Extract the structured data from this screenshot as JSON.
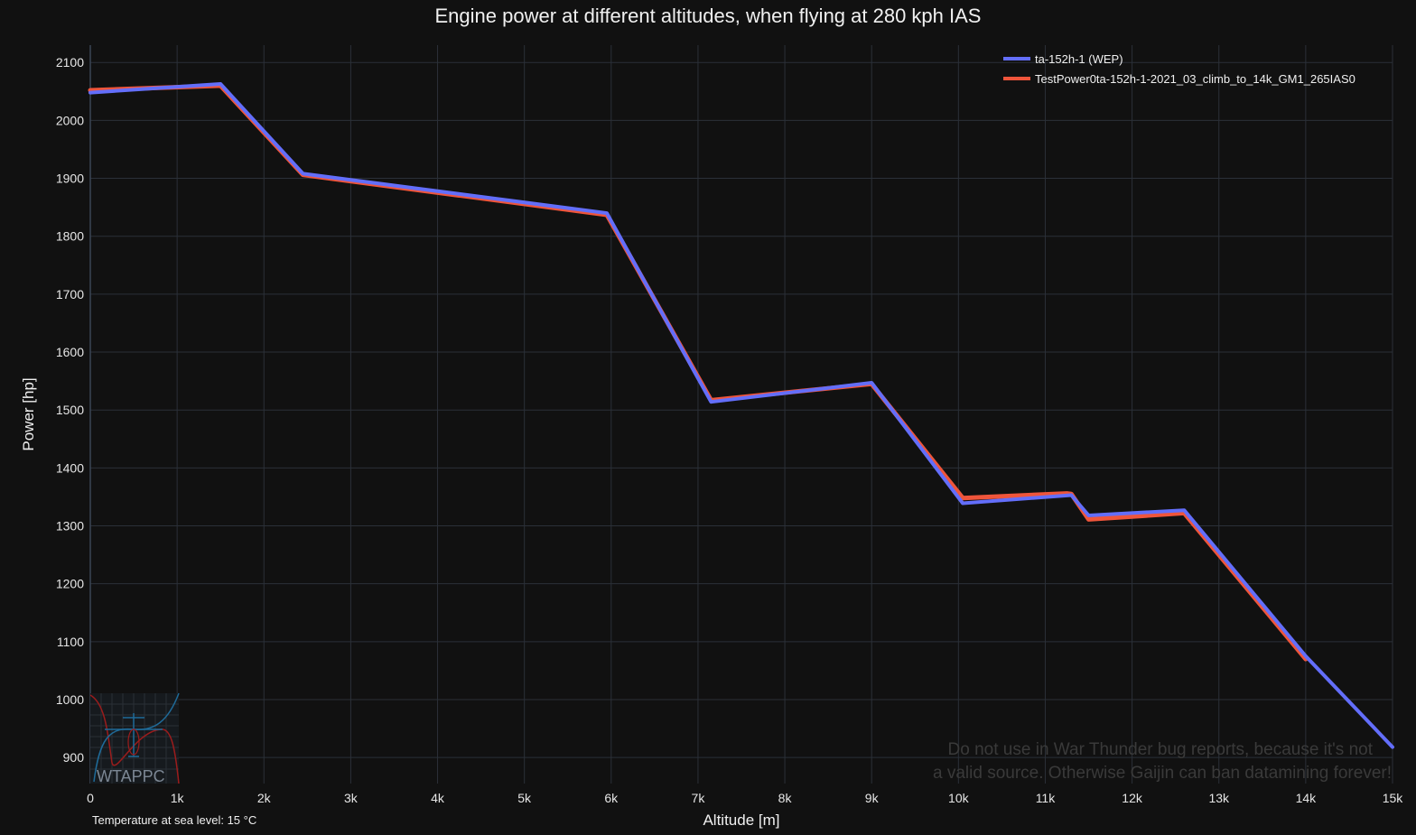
{
  "chart_data": {
    "type": "line",
    "title": "Engine power at different altitudes, when flying at 280 kph IAS",
    "xlabel": "Altitude [m]",
    "ylabel": "Power [hp]",
    "xlim": [
      0,
      15000
    ],
    "ylim": [
      855,
      2130
    ],
    "x_ticks": [
      0,
      1000,
      2000,
      3000,
      4000,
      5000,
      6000,
      7000,
      8000,
      9000,
      10000,
      11000,
      12000,
      13000,
      14000,
      15000
    ],
    "x_tick_labels": [
      "0",
      "1k",
      "2k",
      "3k",
      "4k",
      "5k",
      "6k",
      "7k",
      "8k",
      "9k",
      "10k",
      "11k",
      "12k",
      "13k",
      "14k",
      "15k"
    ],
    "y_ticks": [
      900,
      1000,
      1100,
      1200,
      1300,
      1400,
      1500,
      1600,
      1700,
      1800,
      1900,
      2000,
      2100
    ],
    "y_tick_labels": [
      "900",
      "1000",
      "1100",
      "1200",
      "1300",
      "1400",
      "1500",
      "1600",
      "1700",
      "1800",
      "1900",
      "2000",
      "2100"
    ],
    "grid": true,
    "legend_position": "top-right",
    "series": [
      {
        "name": "ta-152h-1 (WEP)",
        "color": "#636efa",
        "x": [
          0,
          1500,
          2450,
          5950,
          7150,
          9000,
          10050,
          11300,
          11500,
          12600,
          14000,
          15000
        ],
        "y": [
          2048,
          2063,
          1908,
          1840,
          1514,
          1547,
          1339,
          1353,
          1318,
          1327,
          1075,
          918
        ]
      },
      {
        "name": "TestPower0ta-152h-1-2021_03_climb_to_14k_GM1_265IAS0",
        "color": "#ef553b",
        "x": [
          0,
          1500,
          2450,
          5950,
          7150,
          9000,
          10050,
          11250,
          11300,
          11500,
          12600,
          14000
        ],
        "y": [
          2052,
          2060,
          1906,
          1837,
          1517,
          1545,
          1348,
          1356,
          1355,
          1311,
          1322,
          1070
        ]
      }
    ]
  },
  "annotations": {
    "temperature_note": "Temperature at sea level: 15 °C",
    "watermark_line1": "Do not use in War Thunder bug reports, because it's not",
    "watermark_line2": "a valid source. Otherwise Gaijin can ban datamining forever!",
    "logo_text": "WTAPPC"
  }
}
